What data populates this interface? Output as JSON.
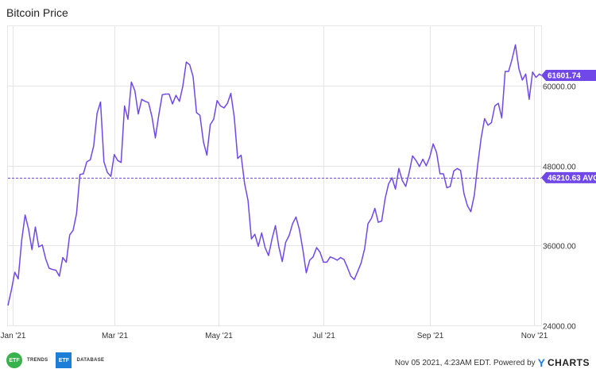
{
  "title": "Bitcoin Price",
  "footer": {
    "text": "Nov 05 2021, 4:23AM EDT. Powered by",
    "brand_mark": "Y",
    "brand_word": "CHARTS",
    "logo1_mark": "ETF",
    "logo1_text": "TRENDS",
    "logo2_mark": "ETF",
    "logo2_text": "DATABASE"
  },
  "colors": {
    "line": "#7048e8",
    "grid": "#e5e5e5",
    "avg": "#7048e8",
    "text": "#333333"
  },
  "chart_data": {
    "type": "line",
    "title": "Bitcoin Price",
    "x_ticks": [
      "Jan '21",
      "Mar '21",
      "May '21",
      "Jul '21",
      "Sep '21",
      "Nov '21"
    ],
    "y_ticks": [
      24000,
      36000,
      48000,
      60000
    ],
    "y_tick_labels": [
      "24000.00",
      "36000.00",
      "48000.00",
      "60000.00"
    ],
    "ylim": [
      24000,
      69000
    ],
    "xlim": [
      "2020-12-29",
      "2021-11-05"
    ],
    "grid": true,
    "average": {
      "value": 46210.63,
      "label": "46210.63 AVG"
    },
    "last_value": {
      "value": 61601.74,
      "label": "61601.74"
    },
    "series": [
      {
        "x": [
          "2020-12-29",
          "2020-12-31",
          "2021-01-02",
          "2021-01-04",
          "2021-01-06",
          "2021-01-08",
          "2021-01-10",
          "2021-01-12",
          "2021-01-14",
          "2021-01-16",
          "2021-01-18",
          "2021-01-20",
          "2021-01-22",
          "2021-01-24",
          "2021-01-26",
          "2021-01-28",
          "2021-01-30",
          "2021-02-01",
          "2021-02-03",
          "2021-02-05",
          "2021-02-07",
          "2021-02-09",
          "2021-02-11",
          "2021-02-13",
          "2021-02-15",
          "2021-02-17",
          "2021-02-19",
          "2021-02-21",
          "2021-02-23",
          "2021-02-25",
          "2021-02-27",
          "2021-03-01",
          "2021-03-03",
          "2021-03-05",
          "2021-03-07",
          "2021-03-09",
          "2021-03-11",
          "2021-03-13",
          "2021-03-15",
          "2021-03-17",
          "2021-03-19",
          "2021-03-21",
          "2021-03-23",
          "2021-03-25",
          "2021-03-27",
          "2021-03-29",
          "2021-03-31",
          "2021-04-02",
          "2021-04-04",
          "2021-04-06",
          "2021-04-08",
          "2021-04-10",
          "2021-04-12",
          "2021-04-14",
          "2021-04-16",
          "2021-04-18",
          "2021-04-20",
          "2021-04-22",
          "2021-04-24",
          "2021-04-26",
          "2021-04-28",
          "2021-04-30",
          "2021-05-02",
          "2021-05-04",
          "2021-05-06",
          "2021-05-08",
          "2021-05-10",
          "2021-05-12",
          "2021-05-14",
          "2021-05-16",
          "2021-05-18",
          "2021-05-20",
          "2021-05-22",
          "2021-05-24",
          "2021-05-26",
          "2021-05-28",
          "2021-05-30",
          "2021-06-01",
          "2021-06-03",
          "2021-06-05",
          "2021-06-07",
          "2021-06-09",
          "2021-06-11",
          "2021-06-13",
          "2021-06-15",
          "2021-06-17",
          "2021-06-19",
          "2021-06-21",
          "2021-06-23",
          "2021-06-25",
          "2021-06-27",
          "2021-06-29",
          "2021-07-01",
          "2021-07-03",
          "2021-07-05",
          "2021-07-07",
          "2021-07-09",
          "2021-07-11",
          "2021-07-13",
          "2021-07-15",
          "2021-07-17",
          "2021-07-19",
          "2021-07-21",
          "2021-07-23",
          "2021-07-25",
          "2021-07-27",
          "2021-07-29",
          "2021-07-31",
          "2021-08-02",
          "2021-08-04",
          "2021-08-06",
          "2021-08-08",
          "2021-08-10",
          "2021-08-12",
          "2021-08-14",
          "2021-08-16",
          "2021-08-18",
          "2021-08-20",
          "2021-08-22",
          "2021-08-24",
          "2021-08-26",
          "2021-08-28",
          "2021-08-30",
          "2021-09-01",
          "2021-09-03",
          "2021-09-05",
          "2021-09-07",
          "2021-09-09",
          "2021-09-11",
          "2021-09-13",
          "2021-09-15",
          "2021-09-17",
          "2021-09-19",
          "2021-09-21",
          "2021-09-23",
          "2021-09-25",
          "2021-09-27",
          "2021-09-29",
          "2021-10-01",
          "2021-10-03",
          "2021-10-05",
          "2021-10-07",
          "2021-10-09",
          "2021-10-11",
          "2021-10-13",
          "2021-10-15",
          "2021-10-17",
          "2021-10-19",
          "2021-10-21",
          "2021-10-23",
          "2021-10-25",
          "2021-10-27",
          "2021-10-29",
          "2021-10-31",
          "2021-11-02",
          "2021-11-04",
          "2021-11-05"
        ],
        "values": [
          27000,
          29300,
          32000,
          31000,
          36800,
          40600,
          38500,
          35400,
          38800,
          35800,
          36100,
          34000,
          32600,
          32400,
          32300,
          31400,
          34200,
          33500,
          37600,
          38300,
          40800,
          46700,
          46800,
          48600,
          48900,
          51000,
          55900,
          57600,
          48600,
          47000,
          46400,
          49700,
          48800,
          48500,
          57000,
          55000,
          60600,
          59300,
          55800,
          58000,
          57700,
          57500,
          55400,
          52200,
          55700,
          58700,
          58800,
          58800,
          57300,
          58600,
          57700,
          60000,
          63600,
          63200,
          61400,
          56000,
          55600,
          51600,
          49600,
          54200,
          55000,
          57800,
          57000,
          56700,
          57400,
          58900,
          55300,
          49100,
          49600,
          45400,
          42800,
          37000,
          37700,
          35900,
          37900,
          35700,
          34500,
          37000,
          39000,
          35800,
          33600,
          36500,
          37500,
          39300,
          40300,
          38400,
          35400,
          31900,
          33800,
          34300,
          35700,
          35000,
          33500,
          33500,
          34300,
          34100,
          33800,
          34200,
          33900,
          32700,
          31400,
          30900,
          32100,
          33400,
          35500,
          39300,
          40100,
          41600,
          39500,
          39700,
          43100,
          45300,
          46200,
          44500,
          47600,
          45800,
          44900,
          47000,
          49500,
          48800,
          47900,
          49000,
          48000,
          49300,
          51300,
          50000,
          46800,
          46800,
          44700,
          44900,
          47200,
          47600,
          47300,
          43800,
          42000,
          41100,
          43600,
          48200,
          52200,
          55100,
          54100,
          54500,
          57000,
          57400,
          55200,
          62200,
          62200,
          64000,
          66200,
          62600,
          60900,
          61800,
          58000,
          62100,
          61300,
          61800,
          61601.74
        ]
      }
    ]
  }
}
